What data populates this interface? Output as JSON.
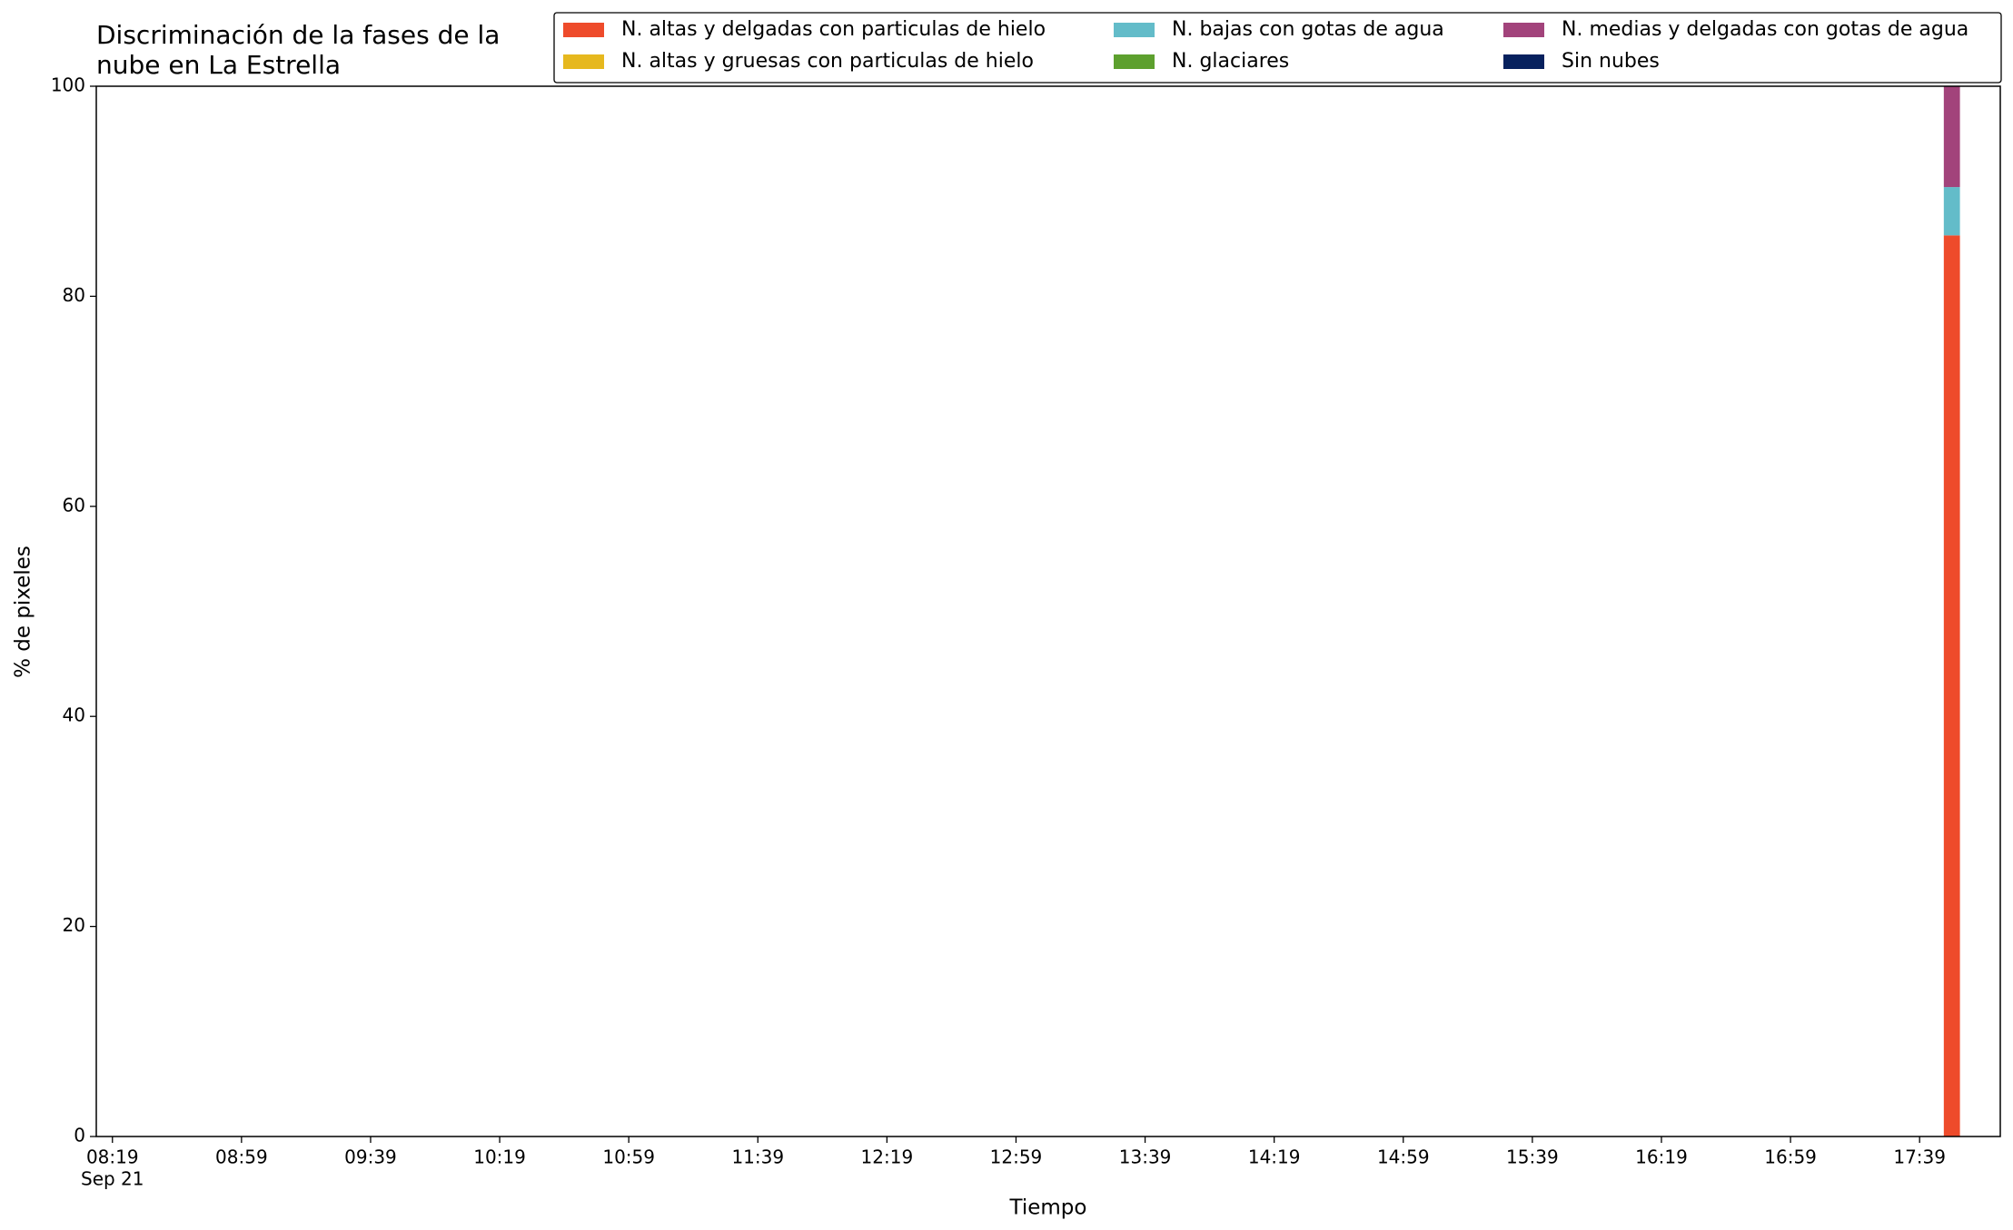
{
  "chart_data": {
    "type": "bar",
    "stacked": true,
    "title": [
      "Discriminación de la fases de la",
      "nube en La Estrella"
    ],
    "x_label": "Tiempo",
    "y_label": "% de pixeles",
    "x": [
      "17:49"
    ],
    "x_date_label": "Sep 21",
    "series": [
      {
        "name": "N. altas y delgadas con particulas de hielo",
        "color": "#ee4b2b",
        "values": [
          85.8
        ]
      },
      {
        "name": "N. altas y gruesas con particulas de hielo",
        "color": "#e6b81e",
        "values": [
          0
        ]
      },
      {
        "name": "N. bajas con gotas de agua",
        "color": "#63bcc9",
        "values": [
          4.6
        ]
      },
      {
        "name": "N. glaciares",
        "color": "#5da02e",
        "values": [
          0
        ]
      },
      {
        "name": "N. medias y delgadas con gotas de agua",
        "color": "#a2437b",
        "values": [
          9.6
        ]
      },
      {
        "name": "Sin nubes",
        "color": "#07215e",
        "values": [
          0
        ]
      }
    ],
    "xlim": [
      "08:14",
      "18:04"
    ],
    "xticks": [
      "08:19",
      "08:59",
      "09:39",
      "10:19",
      "10:59",
      "11:39",
      "12:19",
      "12:59",
      "13:39",
      "14:19",
      "14:59",
      "15:39",
      "16:19",
      "16:59",
      "17:39"
    ],
    "ylim": [
      0,
      100
    ],
    "yticks": [
      0,
      20,
      40,
      60,
      80,
      100
    ],
    "grid": false,
    "legend": "upper right"
  }
}
